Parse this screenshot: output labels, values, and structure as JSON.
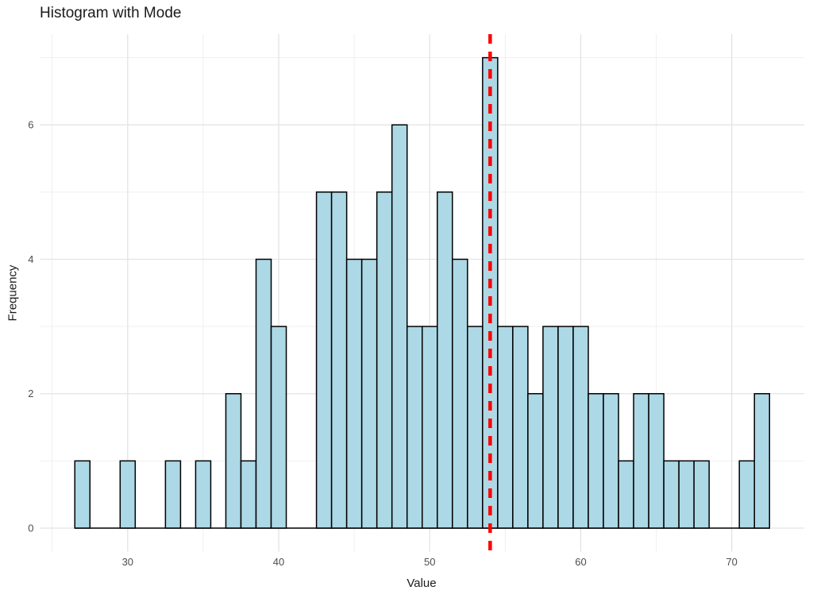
{
  "title": "Histogram with Mode",
  "chart_data": {
    "type": "histogram",
    "title": "Histogram with Mode",
    "xlabel": "Value",
    "ylabel": "Frequency",
    "bin_width": 1,
    "bin_centers": [
      27,
      28,
      29,
      30,
      31,
      32,
      33,
      34,
      35,
      36,
      37,
      38,
      39,
      40,
      41,
      42,
      43,
      44,
      45,
      46,
      47,
      48,
      49,
      50,
      51,
      52,
      53,
      54,
      55,
      56,
      57,
      58,
      59,
      60,
      61,
      62,
      63,
      64,
      65,
      66,
      67,
      68,
      69,
      70,
      71,
      72
    ],
    "counts": [
      1,
      0,
      0,
      1,
      0,
      0,
      1,
      0,
      1,
      0,
      2,
      1,
      4,
      3,
      0,
      0,
      5,
      5,
      4,
      4,
      5,
      6,
      3,
      3,
      5,
      4,
      3,
      7,
      3,
      3,
      2,
      3,
      3,
      3,
      2,
      2,
      1,
      2,
      2,
      1,
      1,
      1,
      0,
      0,
      1,
      2
    ],
    "total_n": 100,
    "mode": 54,
    "mode_line_style": "dashed",
    "x_ticks_major": [
      30,
      40,
      50,
      60,
      70
    ],
    "x_ticks_minor": [
      25,
      35,
      45,
      55,
      65
    ],
    "y_ticks_major": [
      0,
      2,
      4,
      6
    ],
    "y_ticks_minor": [
      1,
      3,
      5,
      7
    ],
    "xlim": [
      24.2,
      74.8
    ],
    "ylim": [
      -0.35,
      7.35
    ],
    "grid": "on",
    "legend": "none",
    "background": "#FFFFFF",
    "colors": {
      "bar_fill": "#ADD8E6",
      "bar_stroke": "#000000",
      "mode_line": "#FF0000",
      "grid_major": "#E3E3E3",
      "grid_minor": "#EFEFEF",
      "tick_label": "#4D4D4D",
      "text": "#1A1A1A"
    }
  }
}
